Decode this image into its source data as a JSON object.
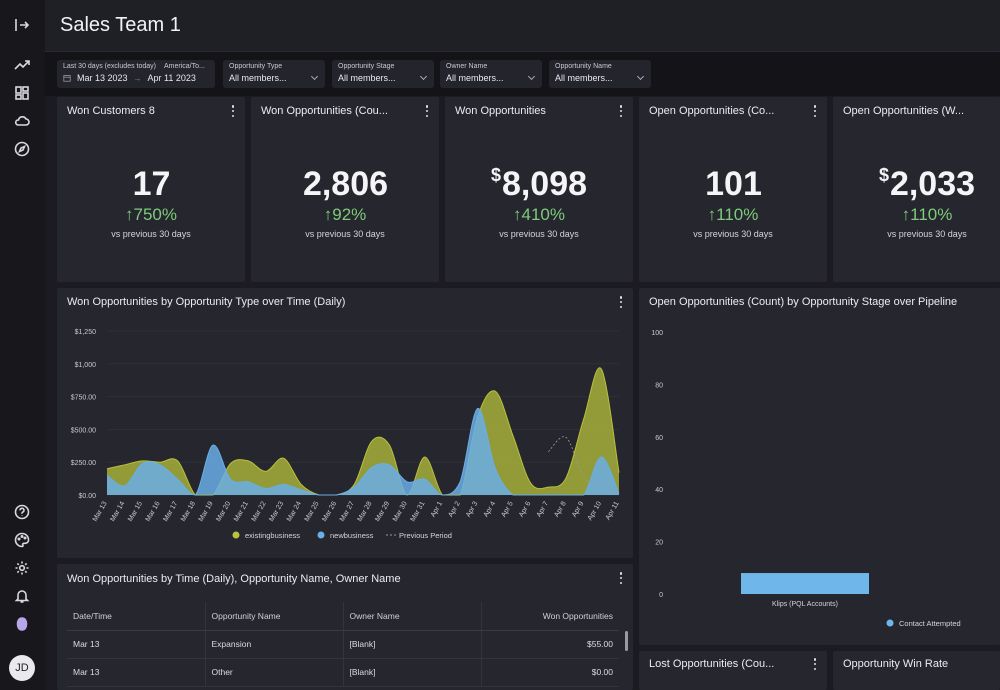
{
  "header": {
    "title": "Sales Team 1"
  },
  "user": {
    "initials": "JD"
  },
  "filters": {
    "date": {
      "range_label": "Last 30 days (excludes today)",
      "tz_label": "America/To...",
      "start": "Mar 13 2023",
      "end": "Apr 11 2023"
    },
    "items": [
      {
        "label": "Opportunity Type",
        "value": "All members..."
      },
      {
        "label": "Opportunity Stage",
        "value": "All members..."
      },
      {
        "label": "Owner Name",
        "value": "All members..."
      },
      {
        "label": "Opportunity Name",
        "value": "All members..."
      }
    ]
  },
  "kpis": [
    {
      "title": "Won Customers 8",
      "prefix": "",
      "value": "17",
      "change": "↑750%",
      "sub": "vs previous 30 days"
    },
    {
      "title": "Won Opportunities (Cou...",
      "prefix": "",
      "value": "2,806",
      "change": "↑92%",
      "sub": "vs previous 30 days"
    },
    {
      "title": "Won Opportunities",
      "prefix": "$",
      "value": "8,098",
      "change": "↑410%",
      "sub": "vs previous 30 days"
    },
    {
      "title": "Open Opportunities (Co...",
      "prefix": "",
      "value": "101",
      "change": "↑110%",
      "sub": "vs previous 30 days"
    },
    {
      "title": "Open Opportunities (W...",
      "prefix": "$",
      "value": "2,033",
      "change": "↑110%",
      "sub": "vs previous 30 days"
    }
  ],
  "colors": {
    "existing": "#b8c23c",
    "new": "#6aaee6",
    "previous": "#9a9aa2",
    "accent_green": "#7ecb7a",
    "bar": "#6fb6ea"
  },
  "area_card": {
    "title": "Won Opportunities by Opportunity Type over Time (Daily)"
  },
  "bar_card": {
    "title": "Open Opportunities (Count) by Opportunity Stage over Pipeline"
  },
  "table_card": {
    "title": "Won Opportunities by Time (Daily), Opportunity Name, Owner Name",
    "columns": [
      "Date/Time",
      "Opportunity Name",
      "Owner Name",
      "Won Opportunities"
    ],
    "rows": [
      [
        "Mar 13",
        "Expansion",
        "[Blank]",
        "$55.00"
      ],
      [
        "Mar 13",
        "Other",
        "[Blank]",
        "$0.00"
      ]
    ]
  },
  "bottom_cards": [
    {
      "title": "Lost Opportunities (Cou..."
    },
    {
      "title": "Opportunity Win Rate"
    }
  ],
  "chart_data": [
    {
      "type": "area",
      "title": "Won Opportunities by Opportunity Type over Time (Daily)",
      "categories": [
        "Mar 13",
        "Mar 14",
        "Mar 15",
        "Mar 16",
        "Mar 17",
        "Mar 18",
        "Mar 19",
        "Mar 20",
        "Mar 21",
        "Mar 22",
        "Mar 23",
        "Mar 24",
        "Mar 25",
        "Mar 26",
        "Mar 27",
        "Mar 28",
        "Mar 29",
        "Mar 30",
        "Mar 31",
        "Apr 1",
        "Apr 2",
        "Apr 3",
        "Apr 4",
        "Apr 5",
        "Apr 6",
        "Apr 7",
        "Apr 8",
        "Apr 9",
        "Apr 10",
        "Apr 11"
      ],
      "series": [
        {
          "name": "existingbusiness",
          "values": [
            200,
            230,
            260,
            250,
            260,
            0,
            0,
            240,
            260,
            180,
            280,
            80,
            0,
            0,
            80,
            410,
            380,
            0,
            290,
            0,
            0,
            600,
            790,
            450,
            90,
            60,
            130,
            580,
            960,
            170
          ]
        },
        {
          "name": "newbusiness",
          "values": [
            150,
            70,
            240,
            230,
            120,
            0,
            380,
            120,
            100,
            50,
            80,
            40,
            0,
            0,
            60,
            210,
            230,
            100,
            120,
            0,
            100,
            660,
            200,
            0,
            0,
            0,
            0,
            0,
            290,
            10
          ]
        },
        {
          "name": "Previous Period",
          "values": [
            null,
            null,
            null,
            null,
            null,
            null,
            null,
            null,
            null,
            null,
            null,
            null,
            null,
            null,
            null,
            null,
            null,
            null,
            null,
            null,
            null,
            null,
            null,
            null,
            null,
            330,
            440,
            140,
            80,
            20
          ]
        }
      ],
      "yticks": [
        "$0.00",
        "$250.00",
        "$500.00",
        "$750.00",
        "$1,000",
        "$1,250"
      ],
      "ylim": [
        0,
        1250
      ],
      "legend": [
        "existingbusiness",
        "newbusiness",
        "Previous Period"
      ]
    },
    {
      "type": "bar",
      "title": "Open Opportunities (Count) by Opportunity Stage over Pipeline",
      "categories": [
        "Klips (PQL Accounts)"
      ],
      "series": [
        {
          "name": "Contact Attempted",
          "values": [
            8
          ]
        }
      ],
      "yticks": [
        "0",
        "20",
        "40",
        "60",
        "80",
        "100"
      ],
      "ylim": [
        0,
        100
      ],
      "legend": [
        "Contact Attempted"
      ]
    }
  ]
}
